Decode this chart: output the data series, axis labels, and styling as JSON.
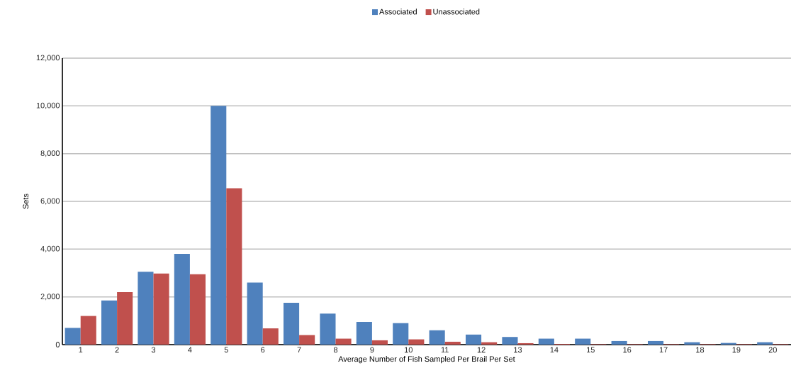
{
  "chart_data": {
    "type": "bar",
    "xlabel": "Average Number of Fish Sampled Per Brail Per Set",
    "ylabel": "Sets",
    "categories": [
      "1",
      "2",
      "3",
      "4",
      "5",
      "6",
      "7",
      "8",
      "9",
      "10",
      "11",
      "12",
      "13",
      "14",
      "15",
      "16",
      "17",
      "18",
      "19",
      "20"
    ],
    "series": [
      {
        "name": "Associated",
        "color": "#4f81bd",
        "values": [
          700,
          1850,
          3050,
          3800,
          10000,
          2600,
          1750,
          1300,
          950,
          900,
          600,
          420,
          320,
          250,
          250,
          150,
          150,
          100,
          70,
          100
        ]
      },
      {
        "name": "Unassociated",
        "color": "#c0504d",
        "values": [
          1200,
          2200,
          2980,
          2950,
          6550,
          680,
          400,
          250,
          180,
          220,
          120,
          100,
          60,
          30,
          20,
          20,
          20,
          20,
          20,
          20
        ]
      }
    ],
    "ylim": [
      0,
      12000
    ],
    "yticks": [
      0,
      {
        "value": 2000,
        "label": "2,000"
      },
      {
        "value": 4000,
        "label": "4,000"
      },
      {
        "value": 6000,
        "label": "6,000"
      },
      {
        "value": 8000,
        "label": "8,000"
      },
      {
        "value": 10000,
        "label": "10,000"
      },
      {
        "value": 12000,
        "label": "12,000"
      }
    ],
    "grid": "y",
    "legend": "top"
  }
}
